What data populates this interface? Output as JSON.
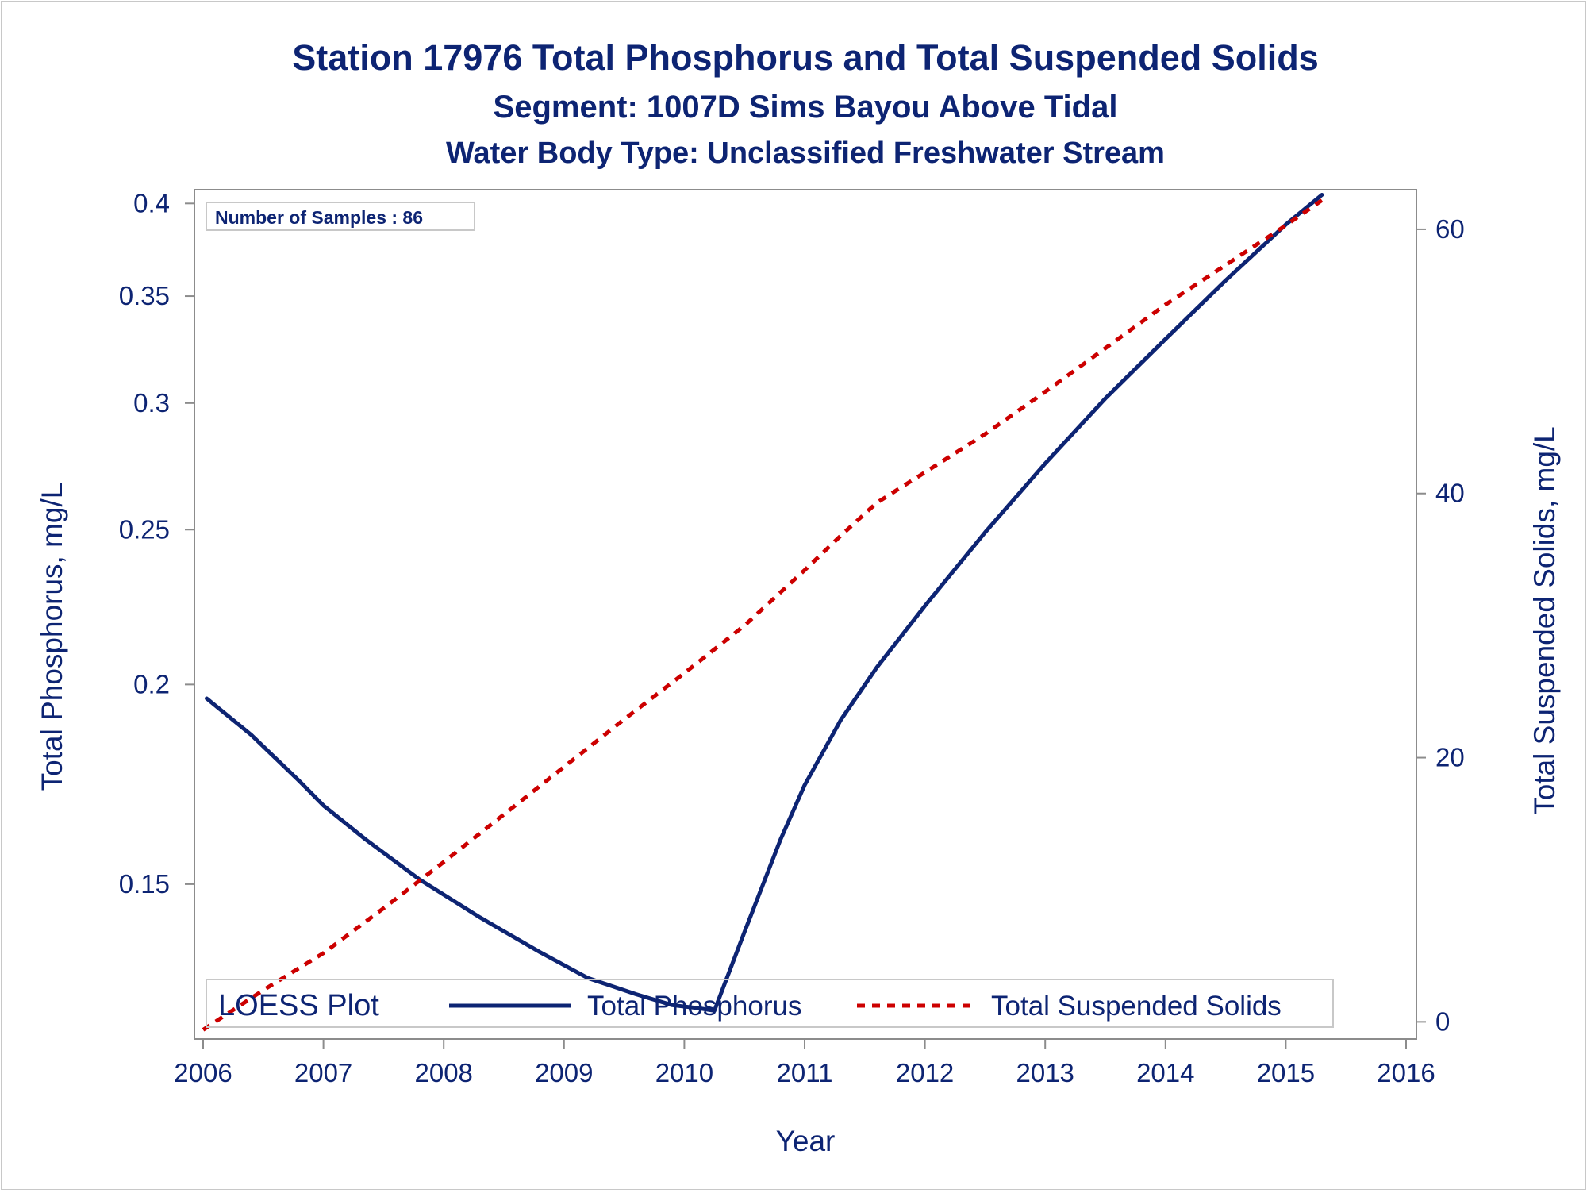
{
  "titles": {
    "main": "Station 17976  Total Phosphorus and Total Suspended Solids",
    "segment": "Segment: 1007D  Sims Bayou Above Tidal",
    "water_body": "Water Body Type: Unclassified Freshwater Stream"
  },
  "inset": {
    "samples_text": "Number of Samples : 86"
  },
  "legend": {
    "title": "LOESS Plot",
    "position": "bottom-inside"
  },
  "colors": {
    "text": "#0d2473",
    "phosphorus": "#0d2473",
    "tss": "#cc0000",
    "axis": "#8c8c8c"
  },
  "chart_data": {
    "type": "line",
    "title": "Station 17976  Total Phosphorus and Total Suspended Solids",
    "xlabel": "Year",
    "ylabel": "Total Phosphorus, mg/L",
    "y2label": "Total Suspended Solids, mg/L",
    "xlim": [
      2006,
      2016
    ],
    "ylim": [
      0.12,
      0.408
    ],
    "y_scale": "log",
    "y2lim": [
      -1.3,
      63
    ],
    "x_ticks": [
      2006,
      2007,
      2008,
      2009,
      2010,
      2011,
      2012,
      2013,
      2014,
      2015,
      2016
    ],
    "y_ticks": [
      "0.15",
      "0.2",
      "0.25",
      "0.3",
      "0.35",
      "0.4"
    ],
    "y2_ticks": [
      "0",
      "20",
      "40",
      "60"
    ],
    "grid": false,
    "series": [
      {
        "name": "Total Phosphorus",
        "axis": "left",
        "style": "solid",
        "x": [
          2006.03,
          2006.4,
          2006.8,
          2007.0,
          2007.35,
          2007.8,
          2008.3,
          2008.8,
          2009.2,
          2009.6,
          2009.9,
          2010.1,
          2010.25,
          2010.5,
          2010.8,
          2011.0,
          2011.3,
          2011.6,
          2012.0,
          2012.5,
          2013.0,
          2013.5,
          2014.0,
          2014.5,
          2015.0,
          2015.3
        ],
        "y": [
          0.196,
          0.186,
          0.174,
          0.168,
          0.16,
          0.151,
          0.143,
          0.136,
          0.131,
          0.128,
          0.126,
          0.1255,
          0.125,
          0.14,
          0.16,
          0.173,
          0.19,
          0.205,
          0.224,
          0.249,
          0.275,
          0.302,
          0.329,
          0.358,
          0.388,
          0.405
        ]
      },
      {
        "name": "Total Suspended Solids",
        "axis": "right",
        "style": "dashed",
        "x": [
          2006.0,
          2006.5,
          2007.0,
          2007.5,
          2008.0,
          2008.5,
          2009.0,
          2009.5,
          2010.0,
          2010.5,
          2011.0,
          2011.3,
          2011.6,
          2012.0,
          2012.5,
          2013.0,
          2013.5,
          2014.0,
          2014.5,
          2015.0,
          2015.3
        ],
        "y": [
          -0.6,
          2.4,
          5.2,
          8.6,
          12.1,
          15.7,
          19.3,
          22.9,
          26.4,
          30.0,
          34.2,
          36.8,
          39.3,
          41.6,
          44.5,
          47.7,
          51.0,
          54.3,
          57.3,
          60.3,
          62.2
        ]
      }
    ]
  }
}
